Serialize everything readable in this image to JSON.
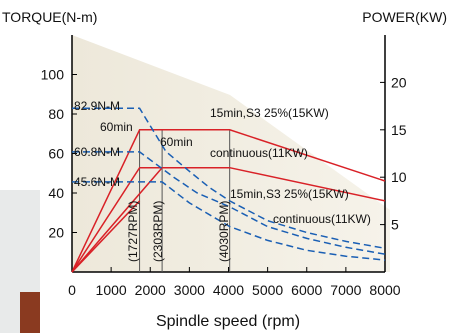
{
  "chart_data": {
    "type": "line",
    "left_axis_label": "TORQUE(N-m)",
    "right_axis_label": "POWER(KW)",
    "xlabel": "Spindle speed (rpm)",
    "x_ticks": [
      0,
      1000,
      2000,
      3000,
      4000,
      5000,
      6000,
      7000,
      8000
    ],
    "x_tick_labels": [
      "0",
      "1000",
      "2000",
      "3000",
      "4000",
      "5000",
      "6000",
      "7000",
      "8000"
    ],
    "left_ticks": [
      20,
      40,
      60,
      80,
      100
    ],
    "left_tick_labels": [
      "20",
      "40",
      "60",
      "80",
      "100"
    ],
    "right_ticks": [
      5,
      10,
      15,
      20
    ],
    "right_tick_labels": [
      "5",
      "10",
      "15",
      "20"
    ],
    "xlim": [
      0,
      8000
    ],
    "left_ylim": [
      0,
      120
    ],
    "right_ylim": [
      0,
      25
    ],
    "colors": {
      "power": "#d92127",
      "torque": "#1a5fb4",
      "guide": "#7a7a7a"
    },
    "annotations": {
      "torque_82": "82.9N-M",
      "torque_60": "60.8N-M",
      "torque_45": "45.6N-M",
      "label_60min_a": "60min",
      "label_60min_b": "60min",
      "label_s3_power": "15min,S3 25%(15KW)",
      "label_cont_power": "continuous(11KW)",
      "label_s3_torque": "15min,S3 25%(15KW)",
      "label_cont_torque": "continuous(11KW)",
      "rpm_1727": "(1727RPM)",
      "rpm_2303": "(2303RPM)",
      "rpm_4030": "(4030RPM)"
    },
    "series": [
      {
        "axis": "right",
        "style": "solid",
        "x": [
          0,
          1727,
          4030,
          8000
        ],
        "y": [
          0,
          15,
          15,
          9.6
        ]
      },
      {
        "axis": "right",
        "style": "solid",
        "x": [
          0,
          1727,
          4030
        ],
        "y": [
          0,
          11,
          11
        ]
      },
      {
        "axis": "right",
        "style": "solid",
        "x": [
          0,
          2303,
          4030,
          8000
        ],
        "y": [
          0,
          11,
          11,
          7.5
        ]
      },
      {
        "axis": "right",
        "style": "solid",
        "x": [
          0,
          1727
        ],
        "y": [
          0,
          7.5
        ]
      },
      {
        "axis": "left",
        "style": "dashed",
        "x": [
          0,
          1727,
          2400,
          3000,
          3500,
          4030,
          5000,
          6000,
          7000,
          8000
        ],
        "y": [
          82.9,
          82.9,
          61,
          51,
          43,
          36,
          26,
          20,
          15.5,
          12
        ]
      },
      {
        "axis": "left",
        "style": "dashed",
        "x": [
          0,
          1727,
          2600,
          3200,
          4030,
          5000,
          6000,
          7000,
          8000
        ],
        "y": [
          60.8,
          60.8,
          48,
          40,
          33,
          23,
          17,
          12.5,
          9
        ]
      },
      {
        "axis": "left",
        "style": "dashed",
        "x": [
          0,
          2303,
          3000,
          4030,
          5000,
          6000,
          7000,
          8000
        ],
        "y": [
          45.6,
          45.6,
          35,
          23,
          16,
          11,
          8,
          6
        ]
      }
    ]
  }
}
